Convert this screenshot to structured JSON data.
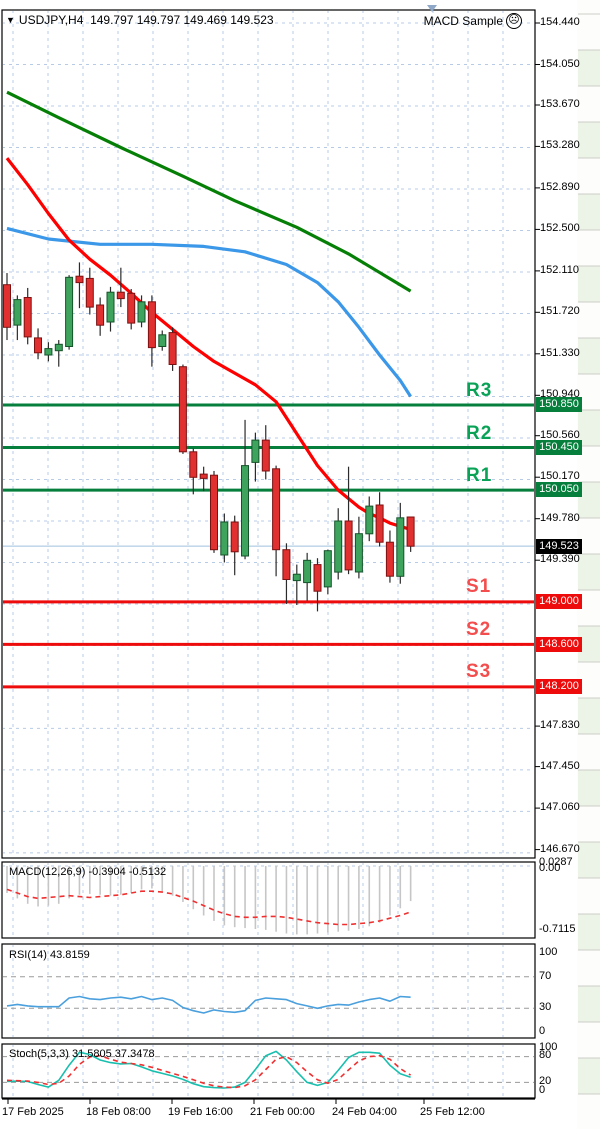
{
  "header": {
    "dropdown_icon": "▼",
    "symbol": "USDJPY,H4",
    "ohlc_text": "149.797 149.797 149.469 149.523",
    "ea_label": "MACD Sample",
    "ea_icon": "sad-face"
  },
  "colors": {
    "grid": "#b7cbe7",
    "bull": "#3ea35c",
    "bull_border": "#14532a",
    "bear": "#e03030",
    "bear_border": "#7c1111",
    "wick": "#2b2b2b",
    "ma_slow": "#067f06",
    "ma_mid": "#3b97e8",
    "ma_fast": "#fe0000",
    "resistance": "#067f3c",
    "support": "#ee0b0b",
    "price_line": "#9fc0de",
    "macd_hist": "#c6c6c6",
    "macd_signal": "#f03030",
    "rsi_line": "#4a9fdd",
    "stoch_k": "#18bfae",
    "stoch_d": "#f03030",
    "panel_border": "#000000",
    "indicator_level": "#9a9a9a"
  },
  "levels": {
    "resistance": [
      {
        "name": "R3",
        "price_text": "150.850",
        "price": 150.85
      },
      {
        "name": "R2",
        "price_text": "150.450",
        "price": 150.45
      },
      {
        "name": "R1",
        "price_text": "150.050",
        "price": 150.05
      }
    ],
    "support": [
      {
        "name": "S1",
        "price_text": "149.000",
        "price": 149.0
      },
      {
        "name": "S2",
        "price_text": "148.600",
        "price": 148.6
      },
      {
        "name": "S3",
        "price_text": "148.200",
        "price": 148.2
      }
    ],
    "current_price_text": "149.523",
    "current_price": 149.523
  },
  "price_axis_labels": [
    "154.440",
    "154.050",
    "153.670",
    "153.280",
    "152.890",
    "152.500",
    "152.110",
    "151.720",
    "151.330",
    "150.940",
    "150.560",
    "150.170",
    "149.780",
    "149.390",
    "147.830",
    "147.450",
    "147.060",
    "146.670"
  ],
  "time_axis_labels": [
    "17 Feb 2025",
    "18 Feb 08:00",
    "19 Feb 16:00",
    "21 Feb 00:00",
    "24 Feb 04:00",
    "25 Feb 12:00"
  ],
  "chart_data": [
    {
      "id": "price_panel",
      "type": "candlestick",
      "symbol": "USDJPY",
      "timeframe": "H4",
      "ylim": [
        146.59,
        154.56
      ],
      "axis_tick_step": 0.39,
      "grid": true,
      "current_bar_ohlc": {
        "open": 149.797,
        "high": 149.797,
        "low": 149.469,
        "close": 149.523
      },
      "candles_ohlc": [
        [
          151.98,
          152.09,
          151.46,
          151.58
        ],
        [
          151.6,
          151.88,
          151.46,
          151.84
        ],
        [
          151.86,
          151.95,
          151.42,
          151.49
        ],
        [
          151.48,
          151.57,
          151.28,
          151.34
        ],
        [
          151.32,
          151.44,
          151.26,
          151.38
        ],
        [
          151.36,
          151.46,
          151.21,
          151.42
        ],
        [
          151.4,
          152.07,
          151.37,
          152.05
        ],
        [
          152.06,
          152.19,
          151.76,
          152.0
        ],
        [
          152.04,
          152.14,
          151.7,
          151.77
        ],
        [
          151.79,
          151.86,
          151.5,
          151.6
        ],
        [
          151.63,
          151.96,
          151.54,
          151.91
        ],
        [
          151.91,
          152.14,
          151.77,
          151.85
        ],
        [
          151.9,
          151.94,
          151.56,
          151.62
        ],
        [
          151.63,
          151.88,
          151.58,
          151.82
        ],
        [
          151.82,
          151.88,
          151.21,
          151.39
        ],
        [
          151.4,
          151.55,
          151.36,
          151.51
        ],
        [
          151.53,
          151.58,
          151.17,
          151.23
        ],
        [
          151.21,
          151.23,
          150.39,
          150.41
        ],
        [
          150.41,
          150.44,
          150.01,
          150.17
        ],
        [
          150.2,
          150.27,
          150.04,
          150.16
        ],
        [
          150.19,
          150.23,
          149.46,
          149.49
        ],
        [
          149.44,
          149.83,
          149.37,
          149.75
        ],
        [
          149.75,
          149.81,
          149.25,
          149.47
        ],
        [
          149.43,
          150.71,
          149.4,
          150.28
        ],
        [
          150.31,
          150.59,
          150.13,
          150.52
        ],
        [
          150.52,
          150.66,
          150.15,
          150.23
        ],
        [
          150.25,
          150.28,
          149.24,
          149.49
        ],
        [
          149.49,
          149.55,
          148.98,
          149.21
        ],
        [
          149.2,
          149.35,
          148.97,
          149.26
        ],
        [
          149.18,
          149.46,
          149.01,
          149.39
        ],
        [
          149.35,
          149.41,
          148.91,
          149.1
        ],
        [
          149.14,
          149.49,
          149.07,
          149.48
        ],
        [
          149.28,
          149.88,
          149.21,
          149.76
        ],
        [
          149.76,
          150.27,
          149.26,
          149.3
        ],
        [
          149.28,
          149.8,
          149.22,
          149.64
        ],
        [
          149.64,
          149.99,
          149.57,
          149.9
        ],
        [
          149.91,
          150.03,
          149.52,
          149.56
        ],
        [
          149.56,
          149.67,
          149.18,
          149.24
        ],
        [
          149.24,
          149.93,
          149.17,
          149.79
        ],
        [
          149.797,
          149.797,
          149.469,
          149.523
        ]
      ],
      "moving_averages": [
        {
          "name": "ma-slow-green",
          "points": [
            [
              0,
              153.79
            ],
            [
              5,
              153.55
            ],
            [
              11,
              153.27
            ],
            [
              17,
              153.0
            ],
            [
              22,
              152.77
            ],
            [
              28,
              152.52
            ],
            [
              33,
              152.27
            ],
            [
              39,
              151.92
            ]
          ]
        },
        {
          "name": "ma-mid-blue",
          "points": [
            [
              0,
              152.51
            ],
            [
              4,
              152.41
            ],
            [
              9,
              152.36
            ],
            [
              14,
              152.36
            ],
            [
              19,
              152.34
            ],
            [
              23,
              152.29
            ],
            [
              27,
              152.17
            ],
            [
              30,
              152.0
            ],
            [
              32,
              151.82
            ],
            [
              34,
              151.58
            ],
            [
              36,
              151.32
            ],
            [
              38,
              151.08
            ],
            [
              39,
              150.93
            ]
          ]
        },
        {
          "name": "ma-fast-red",
          "points": [
            [
              0,
              153.17
            ],
            [
              2,
              152.92
            ],
            [
              4,
              152.65
            ],
            [
              6,
              152.4
            ],
            [
              8,
              152.22
            ],
            [
              10,
              152.07
            ],
            [
              12,
              151.9
            ],
            [
              14,
              151.72
            ],
            [
              16,
              151.56
            ],
            [
              18,
              151.4
            ],
            [
              20,
              151.26
            ],
            [
              22,
              151.15
            ],
            [
              24,
              151.04
            ],
            [
              26,
              150.88
            ],
            [
              28,
              150.58
            ],
            [
              30,
              150.28
            ],
            [
              32,
              150.05
            ],
            [
              34,
              149.89
            ],
            [
              35,
              149.83
            ],
            [
              36,
              149.79
            ],
            [
              37,
              149.74
            ],
            [
              38,
              149.71
            ],
            [
              39,
              149.68
            ]
          ]
        }
      ]
    },
    {
      "id": "macd_panel",
      "type": "bar",
      "title_text": "MACD(12,26,9) -0.3904 -0.5132",
      "macd_value": -0.3904,
      "signal_value": -0.5132,
      "axis_labels": [
        "0.0287",
        "0.00",
        "-0.7115"
      ],
      "ylim": [
        -0.78,
        0.05
      ],
      "histogram": [
        -0.3,
        -0.36,
        -0.42,
        -0.45,
        -0.44,
        -0.42,
        -0.36,
        -0.32,
        -0.31,
        -0.32,
        -0.33,
        -0.32,
        -0.3,
        -0.26,
        -0.25,
        -0.28,
        -0.33,
        -0.4,
        -0.48,
        -0.55,
        -0.61,
        -0.66,
        -0.68,
        -0.69,
        -0.7,
        -0.71,
        -0.73,
        -0.75,
        -0.76,
        -0.76,
        -0.75,
        -0.74,
        -0.73,
        -0.72,
        -0.7,
        -0.67,
        -0.63,
        -0.55,
        -0.47,
        -0.39
      ],
      "signal_line": [
        -0.26,
        -0.3,
        -0.34,
        -0.36,
        -0.35,
        -0.34,
        -0.33,
        -0.34,
        -0.35,
        -0.34,
        -0.33,
        -0.32,
        -0.3,
        -0.28,
        -0.28,
        -0.29,
        -0.31,
        -0.35,
        -0.39,
        -0.44,
        -0.49,
        -0.53,
        -0.56,
        -0.57,
        -0.57,
        -0.56,
        -0.56,
        -0.57,
        -0.59,
        -0.61,
        -0.63,
        -0.64,
        -0.65,
        -0.65,
        -0.64,
        -0.63,
        -0.61,
        -0.58,
        -0.55,
        -0.51
      ]
    },
    {
      "id": "rsi_panel",
      "type": "line",
      "title_text": "RSI(14) 43.8159",
      "rsi_value": 43.8159,
      "axis_labels": [
        "100",
        "70",
        "30",
        "0"
      ],
      "level_lines": [
        70,
        30
      ],
      "ylim": [
        0,
        100
      ],
      "values": [
        33,
        35,
        33,
        32,
        32,
        32,
        43,
        45,
        42,
        41,
        43,
        44,
        42,
        45,
        41,
        43,
        40,
        31,
        27,
        24,
        28,
        26,
        25,
        27,
        40,
        43,
        42,
        41,
        36,
        33,
        30,
        33,
        35,
        34,
        38,
        41,
        43,
        39,
        45,
        44
      ]
    },
    {
      "id": "stoch_panel",
      "type": "line",
      "title_text": "Stoch(5,3,3) 31.5805 37.3478",
      "k_value": 31.5805,
      "d_value": 37.3478,
      "axis_labels": [
        "100",
        "80",
        "20",
        "0"
      ],
      "level_lines": [
        80,
        20
      ],
      "ylim": [
        0,
        100
      ],
      "k_line": [
        22,
        23,
        22,
        15,
        9,
        25,
        60,
        90,
        85,
        72,
        66,
        63,
        64,
        56,
        47,
        41,
        35,
        27,
        17,
        10,
        8,
        7,
        9,
        20,
        50,
        82,
        92,
        72,
        45,
        20,
        13,
        20,
        48,
        78,
        90,
        90,
        88,
        60,
        40,
        32
      ],
      "d_line": [
        25,
        24,
        23,
        20,
        15,
        18,
        35,
        62,
        79,
        82,
        74,
        67,
        64,
        61,
        55,
        48,
        41,
        34,
        26,
        18,
        12,
        9,
        8,
        12,
        26,
        50,
        74,
        80,
        66,
        45,
        26,
        18,
        27,
        49,
        70,
        80,
        82,
        74,
        52,
        37
      ]
    }
  ]
}
